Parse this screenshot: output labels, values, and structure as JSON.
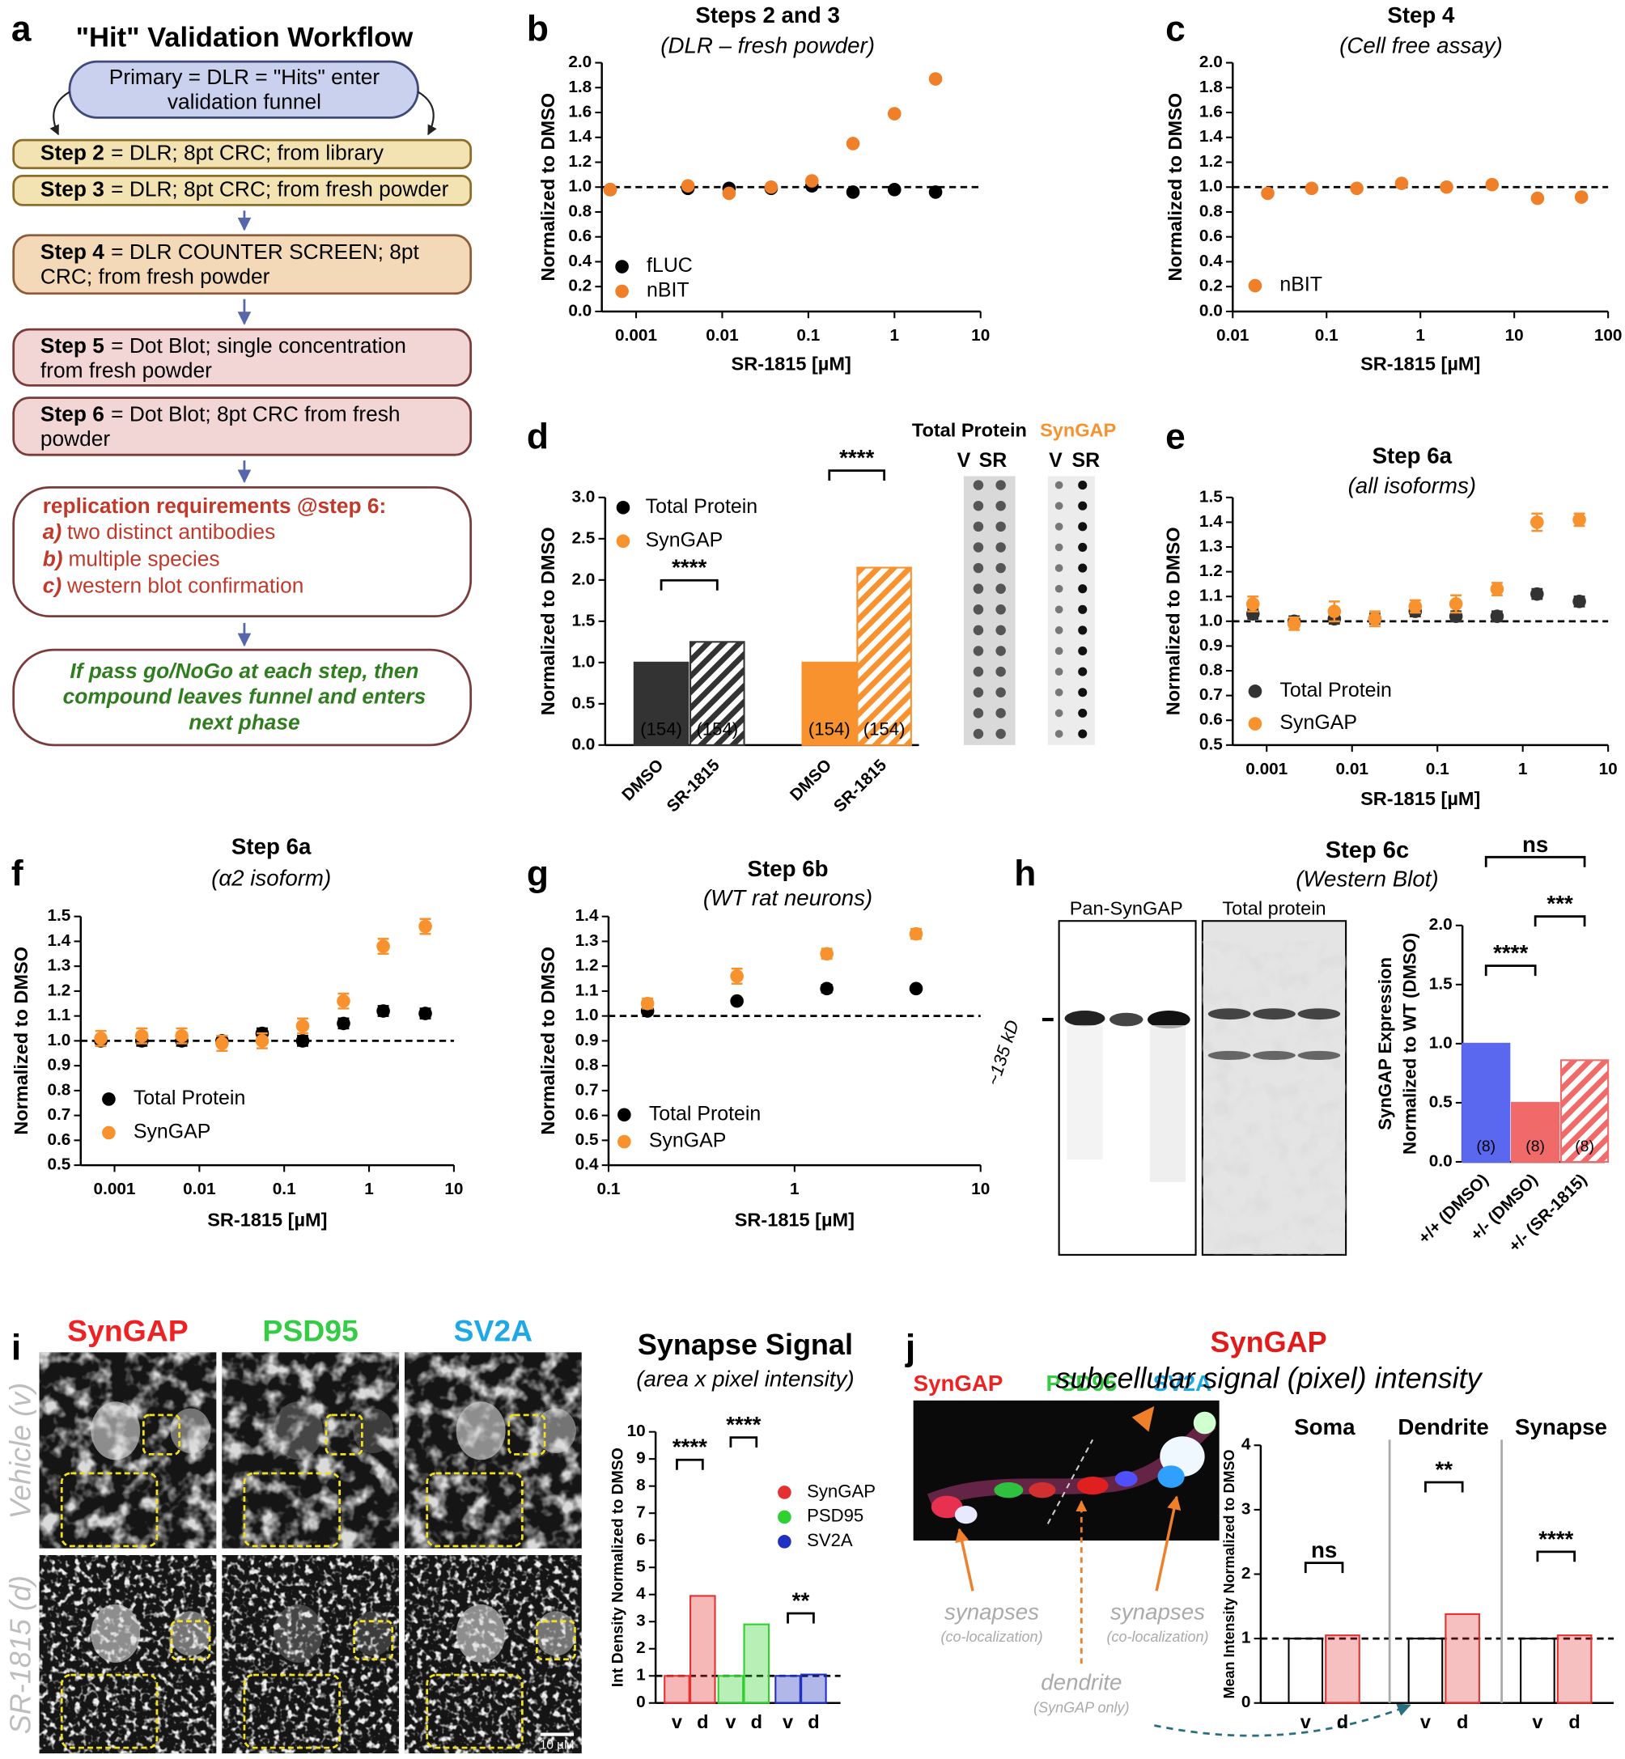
{
  "panel_labels": [
    "a",
    "b",
    "c",
    "d",
    "e",
    "f",
    "g",
    "h",
    "i",
    "j"
  ],
  "workflow": {
    "title": "\"Hit\" Validation Workflow",
    "primary": [
      "Primary  = DLR = \"Hits\" enter",
      "validation funnel"
    ],
    "steps": [
      {
        "label": "Step 2",
        "lines": [
          "= DLR; 8pt CRC; from library"
        ]
      },
      {
        "label": "Step 3",
        "lines": [
          "= DLR; 8pt CRC; from fresh powder"
        ]
      },
      {
        "label": "Step 4",
        "lines": [
          "= DLR COUNTER SCREEN; 8pt",
          "CRC; from fresh powder"
        ]
      },
      {
        "label": "Step 5",
        "lines": [
          "= Dot Blot; single concentration",
          "from fresh powder"
        ]
      },
      {
        "label": "Step 6",
        "lines": [
          "= Dot Blot; 8pt CRC from fresh",
          "powder"
        ]
      }
    ],
    "requirements": {
      "title": "replication requirements @step 6:",
      "items": [
        {
          "key": "a)",
          "text": "two distinct antibodies"
        },
        {
          "key": "b)",
          "text": "multiple species"
        },
        {
          "key": "c)",
          "text": "western blot confirmation"
        }
      ]
    },
    "outcome": [
      "If pass go/NoGo at each step, then",
      "compound leaves funnel and enters",
      "next phase"
    ]
  },
  "dot_blot": {
    "headers": [
      "Total Protein",
      "SynGAP"
    ],
    "lanes": [
      "V",
      "SR",
      "V",
      "SR"
    ]
  },
  "western_blot": {
    "headers": [
      "Pan-SynGAP",
      "Total protein"
    ],
    "marker": "~135 kD"
  },
  "micrographs": {
    "channels": [
      "SynGAP",
      "PSD95",
      "SV2A"
    ],
    "rows": [
      "Vehicle (v)",
      "SR-1815 (d)"
    ],
    "scale_bar": "10 µM"
  },
  "subcellular_image": {
    "channels": [
      "SynGAP",
      "PSD95",
      "SV2A"
    ],
    "callouts": [
      {
        "text": "synapses",
        "note": "(co-localization)"
      },
      {
        "text": "synapses",
        "note": "(co-localization)"
      },
      {
        "text": "dendrite",
        "note": "(SynGAP only)"
      }
    ]
  },
  "chart_data": [
    {
      "type": "scatter",
      "title": "Steps 2 and 3",
      "subtitle": "(DLR – fresh powder)",
      "x_label": "SR-1815 [µM]",
      "y_label": "Normalized to DMSO",
      "log_x": true,
      "x": [
        0.0005,
        0.004,
        0.012,
        0.037,
        0.11,
        0.33,
        1,
        3
      ],
      "series": [
        {
          "name": "fLUC",
          "color": "#000000",
          "values": [
            0.98,
            0.99,
            0.99,
            0.99,
            1.01,
            0.96,
            0.98,
            0.96
          ]
        },
        {
          "name": "nBIT",
          "color": "#f07f2a",
          "values": [
            0.98,
            1.01,
            0.95,
            1.0,
            1.05,
            1.35,
            1.59,
            1.87
          ]
        }
      ],
      "xlim": [
        0.0004,
        10
      ],
      "xticks": [
        0.001,
        0.01,
        0.1,
        1,
        10
      ],
      "ylim": [
        0,
        2
      ],
      "yticks": [
        {
          "value": 0,
          "label": "0.0"
        },
        0.2,
        0.4,
        0.6,
        0.8,
        {
          "value": 1,
          "label": "1.0"
        },
        1.2,
        1.4,
        1.6,
        1.8,
        {
          "value": 2,
          "label": "2.0"
        }
      ],
      "reference_line": 1
    },
    {
      "type": "scatter",
      "title": "Step 4",
      "subtitle": "(Cell free assay)",
      "x_label": "SR-1815 [µM]",
      "y_label": "Normalized to DMSO",
      "log_x": true,
      "x": [
        0.0236,
        0.0694,
        0.21,
        0.63,
        1.9,
        5.8,
        17.7,
        52
      ],
      "series": [
        {
          "name": "nBIT",
          "color": "#f07f2a",
          "values": [
            0.95,
            0.99,
            0.99,
            1.03,
            1.0,
            1.02,
            0.91,
            0.92
          ]
        }
      ],
      "xlim": [
        0.01,
        100
      ],
      "xticks": [
        0.01,
        0.1,
        1,
        10,
        100
      ],
      "ylim": [
        0,
        2
      ],
      "yticks": [
        {
          "value": 0,
          "label": "0.0"
        },
        0.2,
        0.4,
        0.6,
        0.8,
        {
          "value": 1,
          "label": "1.0"
        },
        1.2,
        1.4,
        1.6,
        1.8,
        {
          "value": 2,
          "label": "2.0"
        }
      ],
      "reference_line": 1
    },
    {
      "type": "bar",
      "y_label": "Normalized to DMSO",
      "categories": [
        "DMSO",
        "SR-1815",
        "DMSO",
        "SR-1815"
      ],
      "values": [
        1.0,
        1.25,
        1.0,
        2.15
      ],
      "colors": [
        "#333333",
        "#333333",
        "#f7922f",
        "#f7922f"
      ],
      "hatched": [
        false,
        true,
        false,
        true
      ],
      "n_labels": [
        "(154)",
        "(154)",
        "(154)",
        "(154)"
      ],
      "legend": [
        {
          "name": "Total Protein",
          "color": "#000000"
        },
        {
          "name": "SynGAP",
          "color": "#f7922f"
        }
      ],
      "annotations": [
        {
          "text": "****",
          "between": [
            0,
            1
          ]
        },
        {
          "text": "****",
          "between": [
            2,
            3
          ]
        }
      ],
      "ylim": [
        0,
        3
      ],
      "yticks": [
        {
          "value": 0,
          "label": "0.0"
        },
        0.5,
        {
          "value": 1,
          "label": "1.0"
        },
        1.5,
        {
          "value": 2,
          "label": "2.0"
        },
        2.5,
        {
          "value": 3,
          "label": "3.0"
        }
      ]
    },
    {
      "type": "scatter",
      "title": "Step 6a",
      "subtitle": "(all isoforms)",
      "x_label": "SR-1815 [µM]",
      "y_label": "Normalized to DMSO",
      "log_x": true,
      "x": [
        0.00069,
        0.0021,
        0.0062,
        0.0185,
        0.055,
        0.165,
        0.5,
        1.47,
        4.6
      ],
      "series": [
        {
          "name": "Total Protein",
          "color": "#333333",
          "values": [
            1.03,
            1.0,
            1.01,
            1.01,
            1.04,
            1.02,
            1.02,
            1.11,
            1.08
          ],
          "errors": [
            0.02,
            0.02,
            0.02,
            0.02,
            0.02,
            0.02,
            0.02,
            0.02,
            0.02
          ]
        },
        {
          "name": "SynGAP",
          "color": "#f7922f",
          "values": [
            1.07,
            0.99,
            1.04,
            1.01,
            1.06,
            1.07,
            1.13,
            1.4,
            1.41
          ],
          "errors": [
            0.03,
            0.025,
            0.04,
            0.03,
            0.025,
            0.035,
            0.025,
            0.035,
            0.025
          ]
        }
      ],
      "xlim": [
        0.0004,
        10
      ],
      "xticks": [
        0.001,
        0.01,
        0.1,
        1,
        10
      ],
      "ylim": [
        0.5,
        1.5
      ],
      "yticks": [
        0.5,
        0.6,
        0.7,
        0.8,
        0.9,
        {
          "value": 1,
          "label": "1.0"
        },
        1.1,
        1.2,
        1.3,
        1.4,
        1.5
      ],
      "reference_line": 1
    },
    {
      "type": "scatter",
      "title": "Step 6a",
      "subtitle": "(α2 isoform)",
      "x_label": "SR-1815 [µM]",
      "y_label": "Normalized to DMSO",
      "log_x": true,
      "x": [
        0.00069,
        0.0021,
        0.0062,
        0.0185,
        0.055,
        0.165,
        0.5,
        1.47,
        4.6
      ],
      "series": [
        {
          "name": "Total Protein",
          "color": "#000000",
          "values": [
            1.0,
            1.0,
            1.0,
            1.0,
            1.03,
            1.0,
            1.07,
            1.12,
            1.11
          ],
          "errors": [
            0.02,
            0.02,
            0.02,
            0.02,
            0.02,
            0.02,
            0.02,
            0.02,
            0.02
          ]
        },
        {
          "name": "SynGAP",
          "color": "#f7922f",
          "values": [
            1.01,
            1.02,
            1.02,
            0.99,
            1.0,
            1.06,
            1.16,
            1.38,
            1.46
          ],
          "errors": [
            0.03,
            0.03,
            0.03,
            0.03,
            0.03,
            0.03,
            0.03,
            0.03,
            0.03
          ]
        }
      ],
      "xlim": [
        0.0004,
        10
      ],
      "xticks": [
        0.001,
        0.01,
        0.1,
        1,
        10
      ],
      "ylim": [
        0.5,
        1.5
      ],
      "yticks": [
        0.5,
        0.6,
        0.7,
        0.8,
        0.9,
        {
          "value": 1,
          "label": "1.0"
        },
        1.1,
        1.2,
        1.3,
        1.4,
        1.5
      ],
      "reference_line": 1
    },
    {
      "type": "scatter",
      "title": "Step 6b",
      "subtitle": "(WT rat neurons)",
      "x_label": "SR-1815 [µM]",
      "y_label": "Normalized to DMSO",
      "log_x": true,
      "x": [
        0.162,
        0.49,
        1.49,
        4.5
      ],
      "series": [
        {
          "name": "Total Protein",
          "color": "#000000",
          "values": [
            1.02,
            1.06,
            1.11,
            1.11
          ],
          "errors": [
            0.01,
            0.01,
            0.015,
            0.01
          ]
        },
        {
          "name": "SynGAP",
          "color": "#f7922f",
          "values": [
            1.05,
            1.16,
            1.25,
            1.33
          ],
          "errors": [
            0.02,
            0.03,
            0.02,
            0.02
          ]
        }
      ],
      "xlim": [
        0.1,
        10
      ],
      "xticks": [
        0.1,
        1,
        10
      ],
      "ylim": [
        0.4,
        1.4
      ],
      "yticks": [
        0.4,
        0.5,
        0.6,
        0.7,
        0.8,
        0.9,
        {
          "value": 1,
          "label": "1.0"
        },
        1.1,
        1.2,
        1.3,
        1.4
      ],
      "reference_line": 1
    },
    {
      "type": "bar",
      "title": "Step 6c",
      "subtitle": "(Western Blot)",
      "y_label": [
        "SynGAP Expression",
        "Normalized to WT (DMSO)"
      ],
      "categories": [
        "+/+ (DMSO)",
        "+/- (DMSO)",
        "+/- (SR-1815)"
      ],
      "values": [
        1.0,
        0.5,
        0.86
      ],
      "colors": [
        "#5a68f0",
        "#f06a6a",
        "#f06a6a"
      ],
      "hatched": [
        false,
        false,
        true
      ],
      "n_labels": [
        "(8)",
        "(8)",
        "(8)"
      ],
      "annotations": [
        {
          "text": "****",
          "between": [
            0,
            1
          ]
        },
        {
          "text": "***",
          "between": [
            1,
            2
          ]
        },
        {
          "text": "ns",
          "between": [
            0,
            2
          ]
        }
      ],
      "ylim": [
        0,
        2
      ],
      "yticks": [
        {
          "value": 0,
          "label": "0.0"
        },
        0.5,
        {
          "value": 1,
          "label": "1.0"
        },
        1.5,
        {
          "value": 2,
          "label": "2.0"
        }
      ]
    },
    {
      "type": "bar",
      "title": "Synapse Signal",
      "subtitle": "(area x pixel intensity)",
      "y_label": "Int Density Normalized to DMSO",
      "categories": [
        "v",
        "d",
        "v",
        "d",
        "v",
        "d"
      ],
      "values": [
        1.0,
        3.95,
        1.0,
        2.9,
        1.0,
        1.05
      ],
      "colors": [
        "#e53030",
        "#e53030",
        "#30d030",
        "#30d030",
        "#2030c0",
        "#2030c0"
      ],
      "legend": [
        {
          "name": "SynGAP",
          "color": "#e53030"
        },
        {
          "name": "PSD95",
          "color": "#30d030"
        },
        {
          "name": "SV2A",
          "color": "#2030c0"
        }
      ],
      "annotations": [
        {
          "text": "****",
          "between": [
            0,
            1
          ]
        },
        {
          "text": "****",
          "between": [
            2,
            3
          ]
        },
        {
          "text": "**",
          "between": [
            4,
            5
          ]
        }
      ],
      "ylim": [
        0,
        10
      ],
      "yticks": [
        0,
        1,
        2,
        3,
        4,
        5,
        6,
        7,
        8,
        9,
        10
      ],
      "reference_line": 1
    },
    {
      "type": "bar",
      "title": "SynGAP",
      "subtitle": "subcellular signal (pixel) intensity",
      "y_label": "Mean Intensity Normalized to DMSO",
      "groups": [
        "Soma",
        "Dendrite",
        "Synapse"
      ],
      "categories": [
        "v",
        "d",
        "v",
        "d",
        "v",
        "d"
      ],
      "values": [
        1.0,
        1.05,
        1.0,
        1.38,
        1.0,
        1.05
      ],
      "colors": [
        "#000000",
        "#e53030",
        "#000000",
        "#e53030",
        "#000000",
        "#e53030"
      ],
      "annotations": [
        {
          "text": "ns",
          "between": [
            0,
            1
          ]
        },
        {
          "text": "**",
          "between": [
            2,
            3
          ]
        },
        {
          "text": "****",
          "between": [
            4,
            5
          ]
        }
      ],
      "ylim": [
        0,
        4
      ],
      "yticks": [
        0,
        1,
        2,
        3,
        4
      ],
      "reference_line": 1
    }
  ]
}
